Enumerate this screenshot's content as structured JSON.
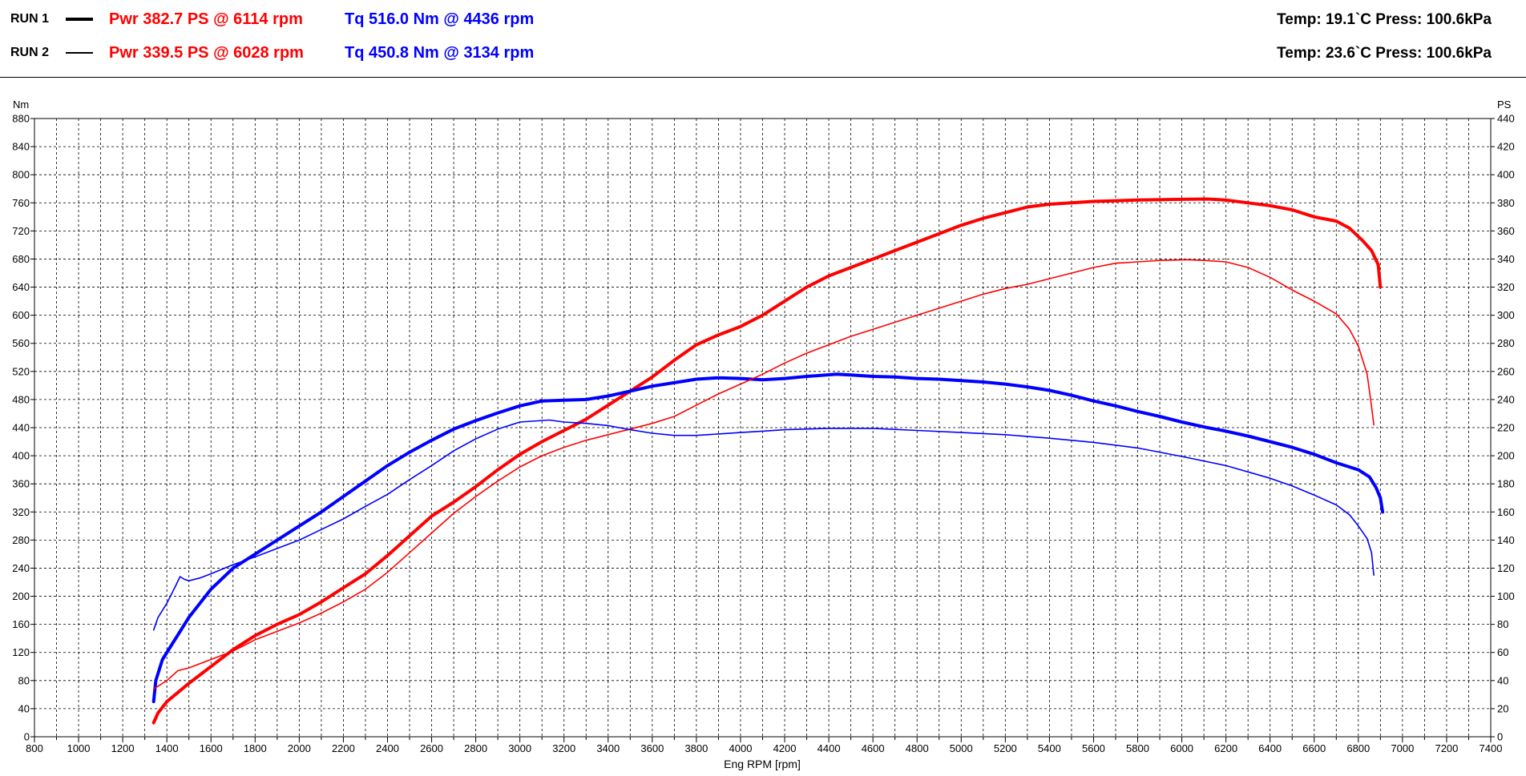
{
  "header": {
    "runs": [
      {
        "label": "RUN 1",
        "power": "Pwr  382.7 PS @ 6114 rpm",
        "torque": "Tq 516.0 Nm @ 4436 rpm",
        "ambient": "Temp: 19.1`C    Press: 100.6kPa"
      },
      {
        "label": "RUN 2",
        "power": "Pwr  339.5 PS @ 6028 rpm",
        "torque": "Tq 450.8 Nm @ 3134 rpm",
        "ambient": "Temp: 23.6`C    Press: 100.6kPa"
      }
    ]
  },
  "chart_data": {
    "type": "line",
    "xlabel": "Eng RPM [rpm]",
    "ylabel_left": "Nm",
    "ylabel_right": "PS",
    "xlim": [
      800,
      7400
    ],
    "ylim_left": [
      0,
      880
    ],
    "ylim_right": [
      0,
      440
    ],
    "x_ticks": [
      "800",
      "1000",
      "1200",
      "1400",
      "1600",
      "1800",
      "2000",
      "2200",
      "2400",
      "2600",
      "2800",
      "3000",
      "3200",
      "3400",
      "3600",
      "3800",
      "4000",
      "4200",
      "4400",
      "4600",
      "4800",
      "5000",
      "5200",
      "5400",
      "5600",
      "5800",
      "6000",
      "6200",
      "6400",
      "6600",
      "6800",
      "7000",
      "7200",
      "7400"
    ],
    "x_minor_step": 100,
    "y_left_ticks": [
      "0",
      "40",
      "80",
      "120",
      "160",
      "200",
      "240",
      "280",
      "320",
      "360",
      "400",
      "440",
      "480",
      "520",
      "560",
      "600",
      "640",
      "680",
      "720",
      "760",
      "800",
      "840",
      "880"
    ],
    "y_right_ticks": [
      "0",
      "20",
      "40",
      "60",
      "80",
      "100",
      "120",
      "140",
      "160",
      "180",
      "200",
      "220",
      "240",
      "260",
      "280",
      "300",
      "320",
      "340",
      "360",
      "380",
      "400",
      "420",
      "440"
    ],
    "grid": true,
    "colors": {
      "power": "#ff0000",
      "torque": "#0000ff",
      "grid": "#000000"
    },
    "series": [
      {
        "run": "RUN 1",
        "quantity": "power",
        "axis": "right",
        "unit": "PS",
        "weight": "thick",
        "points": [
          [
            1340,
            10
          ],
          [
            1360,
            17
          ],
          [
            1400,
            25
          ],
          [
            1500,
            38
          ],
          [
            1600,
            50
          ],
          [
            1700,
            62
          ],
          [
            1800,
            72
          ],
          [
            1900,
            80
          ],
          [
            2000,
            87
          ],
          [
            2100,
            96
          ],
          [
            2200,
            106
          ],
          [
            2300,
            116
          ],
          [
            2400,
            129
          ],
          [
            2500,
            143
          ],
          [
            2600,
            157
          ],
          [
            2700,
            167
          ],
          [
            2800,
            178
          ],
          [
            2900,
            190
          ],
          [
            3000,
            201
          ],
          [
            3100,
            210
          ],
          [
            3200,
            218
          ],
          [
            3300,
            226
          ],
          [
            3400,
            236
          ],
          [
            3500,
            246
          ],
          [
            3600,
            256
          ],
          [
            3700,
            268
          ],
          [
            3800,
            279
          ],
          [
            3900,
            286
          ],
          [
            4000,
            292
          ],
          [
            4100,
            300
          ],
          [
            4200,
            310
          ],
          [
            4300,
            320
          ],
          [
            4400,
            328
          ],
          [
            4500,
            334
          ],
          [
            4600,
            340
          ],
          [
            4700,
            346
          ],
          [
            4800,
            352
          ],
          [
            4900,
            358
          ],
          [
            5000,
            364
          ],
          [
            5100,
            369
          ],
          [
            5200,
            373
          ],
          [
            5300,
            377
          ],
          [
            5400,
            379
          ],
          [
            5500,
            380
          ],
          [
            5600,
            381
          ],
          [
            5800,
            382
          ],
          [
            6000,
            382.5
          ],
          [
            6114,
            382.7
          ],
          [
            6200,
            382
          ],
          [
            6300,
            380
          ],
          [
            6400,
            378
          ],
          [
            6500,
            375
          ],
          [
            6600,
            370
          ],
          [
            6700,
            367
          ],
          [
            6760,
            362
          ],
          [
            6820,
            353
          ],
          [
            6860,
            346
          ],
          [
            6890,
            336
          ],
          [
            6900,
            320
          ]
        ]
      },
      {
        "run": "RUN 1",
        "quantity": "torque",
        "axis": "left",
        "unit": "Nm",
        "weight": "thick",
        "points": [
          [
            1340,
            50
          ],
          [
            1350,
            80
          ],
          [
            1380,
            110
          ],
          [
            1420,
            130
          ],
          [
            1500,
            170
          ],
          [
            1600,
            210
          ],
          [
            1700,
            240
          ],
          [
            1800,
            260
          ],
          [
            1900,
            280
          ],
          [
            2000,
            300
          ],
          [
            2100,
            320
          ],
          [
            2200,
            342
          ],
          [
            2300,
            364
          ],
          [
            2400,
            386
          ],
          [
            2500,
            405
          ],
          [
            2600,
            422
          ],
          [
            2700,
            438
          ],
          [
            2800,
            450
          ],
          [
            2900,
            461
          ],
          [
            3000,
            471
          ],
          [
            3100,
            478
          ],
          [
            3200,
            479
          ],
          [
            3300,
            480
          ],
          [
            3400,
            485
          ],
          [
            3500,
            492
          ],
          [
            3600,
            499
          ],
          [
            3700,
            504
          ],
          [
            3800,
            509
          ],
          [
            3900,
            511
          ],
          [
            4000,
            510
          ],
          [
            4100,
            508
          ],
          [
            4200,
            510
          ],
          [
            4300,
            513
          ],
          [
            4436,
            516
          ],
          [
            4500,
            515
          ],
          [
            4600,
            513
          ],
          [
            4700,
            512
          ],
          [
            4800,
            510
          ],
          [
            4900,
            509
          ],
          [
            5000,
            507
          ],
          [
            5100,
            505
          ],
          [
            5200,
            502
          ],
          [
            5300,
            498
          ],
          [
            5400,
            493
          ],
          [
            5500,
            486
          ],
          [
            5600,
            478
          ],
          [
            5700,
            471
          ],
          [
            5800,
            463
          ],
          [
            5900,
            456
          ],
          [
            6000,
            448
          ],
          [
            6100,
            441
          ],
          [
            6200,
            435
          ],
          [
            6300,
            428
          ],
          [
            6400,
            420
          ],
          [
            6500,
            412
          ],
          [
            6600,
            402
          ],
          [
            6700,
            390
          ],
          [
            6800,
            380
          ],
          [
            6850,
            370
          ],
          [
            6880,
            355
          ],
          [
            6900,
            340
          ],
          [
            6910,
            320
          ]
        ]
      },
      {
        "run": "RUN 2",
        "quantity": "power",
        "axis": "right",
        "unit": "PS",
        "weight": "thin",
        "points": [
          [
            1340,
            34
          ],
          [
            1400,
            40
          ],
          [
            1450,
            47
          ],
          [
            1500,
            49
          ],
          [
            1600,
            55
          ],
          [
            1700,
            61
          ],
          [
            1800,
            69
          ],
          [
            1900,
            75
          ],
          [
            2000,
            81
          ],
          [
            2100,
            88
          ],
          [
            2200,
            96
          ],
          [
            2300,
            105
          ],
          [
            2400,
            117
          ],
          [
            2500,
            131
          ],
          [
            2600,
            145
          ],
          [
            2700,
            159
          ],
          [
            2800,
            171
          ],
          [
            2900,
            182
          ],
          [
            3000,
            192
          ],
          [
            3100,
            200
          ],
          [
            3200,
            206
          ],
          [
            3300,
            211
          ],
          [
            3400,
            215
          ],
          [
            3500,
            219
          ],
          [
            3600,
            223
          ],
          [
            3700,
            228
          ],
          [
            3800,
            236
          ],
          [
            3900,
            244
          ],
          [
            4000,
            251
          ],
          [
            4100,
            258
          ],
          [
            4200,
            266
          ],
          [
            4300,
            273
          ],
          [
            4400,
            279
          ],
          [
            4500,
            285
          ],
          [
            4600,
            290
          ],
          [
            4700,
            295
          ],
          [
            4800,
            300
          ],
          [
            4900,
            305
          ],
          [
            5000,
            310
          ],
          [
            5100,
            315
          ],
          [
            5200,
            319
          ],
          [
            5300,
            322
          ],
          [
            5400,
            326
          ],
          [
            5500,
            330
          ],
          [
            5600,
            334
          ],
          [
            5700,
            337
          ],
          [
            5800,
            338
          ],
          [
            5900,
            339
          ],
          [
            6028,
            339.5
          ],
          [
            6100,
            339
          ],
          [
            6200,
            338
          ],
          [
            6300,
            334
          ],
          [
            6400,
            327
          ],
          [
            6500,
            318
          ],
          [
            6600,
            310
          ],
          [
            6700,
            301
          ],
          [
            6760,
            290
          ],
          [
            6800,
            278
          ],
          [
            6840,
            258
          ],
          [
            6860,
            235
          ],
          [
            6870,
            222
          ]
        ]
      },
      {
        "run": "RUN 2",
        "quantity": "torque",
        "axis": "left",
        "unit": "Nm",
        "weight": "thin",
        "points": [
          [
            1340,
            152
          ],
          [
            1360,
            170
          ],
          [
            1400,
            190
          ],
          [
            1440,
            215
          ],
          [
            1460,
            228
          ],
          [
            1480,
            224
          ],
          [
            1500,
            222
          ],
          [
            1550,
            226
          ],
          [
            1600,
            232
          ],
          [
            1700,
            245
          ],
          [
            1800,
            256
          ],
          [
            1900,
            268
          ],
          [
            2000,
            280
          ],
          [
            2100,
            295
          ],
          [
            2200,
            310
          ],
          [
            2300,
            328
          ],
          [
            2400,
            345
          ],
          [
            2500,
            366
          ],
          [
            2600,
            386
          ],
          [
            2700,
            407
          ],
          [
            2800,
            424
          ],
          [
            2900,
            438
          ],
          [
            3000,
            448
          ],
          [
            3134,
            450.8
          ],
          [
            3200,
            448
          ],
          [
            3300,
            446
          ],
          [
            3400,
            443
          ],
          [
            3500,
            437
          ],
          [
            3600,
            432
          ],
          [
            3700,
            429
          ],
          [
            3800,
            429
          ],
          [
            3900,
            431
          ],
          [
            4000,
            433
          ],
          [
            4100,
            435
          ],
          [
            4200,
            437
          ],
          [
            4400,
            439
          ],
          [
            4600,
            439
          ],
          [
            4800,
            436
          ],
          [
            5000,
            433
          ],
          [
            5200,
            430
          ],
          [
            5400,
            425
          ],
          [
            5600,
            419
          ],
          [
            5800,
            411
          ],
          [
            6000,
            399
          ],
          [
            6200,
            386
          ],
          [
            6400,
            368
          ],
          [
            6500,
            357
          ],
          [
            6600,
            344
          ],
          [
            6700,
            330
          ],
          [
            6760,
            316
          ],
          [
            6800,
            300
          ],
          [
            6840,
            282
          ],
          [
            6860,
            262
          ],
          [
            6870,
            230
          ]
        ]
      }
    ]
  }
}
